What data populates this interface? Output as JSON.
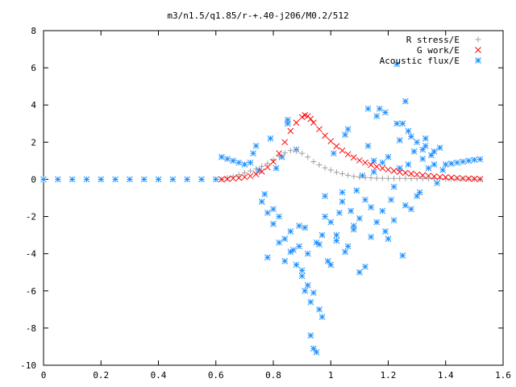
{
  "chart_data": {
    "type": "scatter",
    "title": "m3/n1.5/q1.85/r-+.40-j206/M0.2/512",
    "xlabel": "",
    "ylabel": "",
    "xlim": [
      0,
      1.6
    ],
    "ylim": [
      -10,
      8
    ],
    "x_ticks": [
      0,
      0.2,
      0.4,
      0.6,
      0.8,
      1.0,
      1.2,
      1.4,
      1.6
    ],
    "x_tick_labels": [
      "0",
      "0.2",
      "0.4",
      "0.6",
      "0.8",
      "1",
      "1.2",
      "1.4",
      "1.6"
    ],
    "y_ticks": [
      -10,
      -8,
      -6,
      -4,
      -2,
      0,
      2,
      4,
      6,
      8
    ],
    "y_tick_labels": [
      "-10",
      "-8",
      "-6",
      "-4",
      "-2",
      "0",
      "2",
      "4",
      "6",
      "8"
    ],
    "grid": false,
    "legend_position": "top-right",
    "series": [
      {
        "name": "R stress/E",
        "color": "#a0a0a0",
        "marker": "plus",
        "x": [
          0.62,
          0.64,
          0.66,
          0.68,
          0.7,
          0.72,
          0.74,
          0.76,
          0.78,
          0.8,
          0.82,
          0.84,
          0.86,
          0.88,
          0.9,
          0.92,
          0.94,
          0.96,
          0.98,
          1.0,
          1.02,
          1.04,
          1.06,
          1.08,
          1.1,
          1.12,
          1.14,
          1.16,
          1.18,
          1.2,
          1.22,
          1.24,
          1.26,
          1.28,
          1.3,
          1.32,
          1.34,
          1.36,
          1.38,
          1.4,
          1.42,
          1.44,
          1.46,
          1.48,
          1.5,
          1.52
        ],
        "y": [
          0.0,
          0.08,
          0.15,
          0.25,
          0.35,
          0.45,
          0.55,
          0.7,
          0.85,
          1.05,
          1.25,
          1.42,
          1.55,
          1.52,
          1.4,
          1.2,
          0.95,
          0.78,
          0.62,
          0.5,
          0.38,
          0.3,
          0.22,
          0.16,
          0.12,
          0.1,
          0.08,
          0.06,
          0.06,
          0.05,
          0.05,
          0.05,
          0.05,
          0.04,
          0.04,
          0.04,
          0.03,
          0.03,
          0.03,
          0.02,
          0.02,
          0.02,
          0.02,
          0.01,
          0.01,
          0.0
        ]
      },
      {
        "name": "G work/E",
        "color": "#ff0000",
        "marker": "cross",
        "x": [
          0.62,
          0.64,
          0.66,
          0.68,
          0.7,
          0.72,
          0.74,
          0.76,
          0.78,
          0.8,
          0.82,
          0.84,
          0.86,
          0.88,
          0.9,
          0.91,
          0.92,
          0.93,
          0.94,
          0.96,
          0.98,
          1.0,
          1.02,
          1.04,
          1.06,
          1.08,
          1.1,
          1.12,
          1.14,
          1.16,
          1.18,
          1.2,
          1.22,
          1.24,
          1.26,
          1.28,
          1.3,
          1.32,
          1.34,
          1.36,
          1.38,
          1.4,
          1.42,
          1.44,
          1.46,
          1.48,
          1.5,
          1.52
        ],
        "y": [
          0.0,
          0.02,
          0.05,
          0.08,
          0.12,
          0.18,
          0.28,
          0.42,
          0.65,
          0.95,
          1.4,
          2.0,
          2.6,
          3.05,
          3.35,
          3.45,
          3.4,
          3.25,
          3.05,
          2.7,
          2.35,
          2.05,
          1.78,
          1.55,
          1.35,
          1.18,
          1.02,
          0.9,
          0.78,
          0.68,
          0.6,
          0.52,
          0.46,
          0.4,
          0.35,
          0.3,
          0.26,
          0.22,
          0.19,
          0.16,
          0.13,
          0.11,
          0.09,
          0.07,
          0.05,
          0.04,
          0.03,
          0.02
        ]
      },
      {
        "name": "Acoustic flux/E",
        "color": "#1e90ff",
        "marker": "star",
        "x": [
          0.0,
          0.05,
          0.1,
          0.15,
          0.2,
          0.25,
          0.3,
          0.35,
          0.4,
          0.45,
          0.5,
          0.55,
          0.6,
          0.62,
          0.64,
          0.66,
          0.68,
          0.7,
          0.72,
          0.73,
          0.74,
          0.75,
          0.76,
          0.77,
          0.78,
          0.79,
          0.8,
          0.81,
          0.82,
          0.83,
          0.84,
          0.85,
          0.86,
          0.87,
          0.88,
          0.89,
          0.9,
          0.91,
          0.92,
          0.93,
          0.94,
          0.95,
          0.96,
          0.97,
          0.98,
          0.99,
          1.0,
          1.01,
          1.02,
          1.03,
          1.04,
          1.05,
          1.06,
          1.07,
          1.08,
          1.09,
          1.1,
          1.11,
          1.12,
          1.13,
          1.14,
          1.15,
          1.16,
          1.17,
          1.18,
          1.19,
          1.2,
          1.21,
          1.22,
          1.23,
          1.24,
          1.25,
          1.26,
          1.27,
          1.28,
          1.29,
          1.3,
          1.31,
          1.32,
          1.33,
          1.34,
          1.35,
          1.36,
          1.37,
          1.38,
          1.39,
          1.4,
          1.42,
          1.44,
          1.46,
          1.48,
          1.5,
          1.52,
          0.78,
          0.8,
          0.82,
          0.84,
          0.86,
          0.88,
          0.9,
          0.92,
          0.94,
          0.96,
          0.98,
          1.0,
          1.02,
          1.04,
          1.06,
          1.08,
          1.1,
          1.12,
          1.14,
          1.16,
          1.18,
          1.2,
          1.22,
          1.24,
          1.26,
          1.28,
          1.3,
          1.32,
          0.93,
          0.95,
          0.97,
          0.91,
          0.89,
          1.05,
          1.15,
          1.25,
          0.85,
          1.13,
          1.19,
          1.23,
          1.27,
          1.33,
          1.36
        ],
        "y": [
          0.0,
          0.0,
          0.0,
          0.0,
          0.0,
          0.0,
          0.0,
          0.0,
          0.0,
          0.0,
          0.0,
          0.0,
          0.0,
          1.2,
          1.1,
          1.0,
          0.9,
          0.8,
          0.9,
          1.4,
          1.8,
          0.5,
          -1.2,
          -0.8,
          -4.2,
          2.2,
          -1.6,
          0.6,
          -2.0,
          1.2,
          -4.4,
          3.2,
          -2.8,
          -3.8,
          1.6,
          -3.6,
          -5.2,
          -2.6,
          -4.0,
          -6.6,
          -9.1,
          -3.4,
          -7.0,
          -3.0,
          -0.9,
          -4.4,
          -2.3,
          1.4,
          -3.3,
          -1.8,
          -0.7,
          -3.9,
          2.7,
          -1.7,
          -2.5,
          -0.6,
          -5.0,
          0.2,
          -1.1,
          1.8,
          -1.5,
          0.4,
          3.4,
          3.8,
          0.9,
          -2.8,
          1.2,
          -1.1,
          -2.2,
          3.0,
          2.1,
          -4.1,
          4.2,
          0.8,
          -1.6,
          1.5,
          2.0,
          -0.7,
          1.1,
          1.8,
          0.6,
          1.3,
          0.8,
          -0.2,
          1.7,
          0.5,
          0.8,
          0.85,
          0.9,
          0.95,
          1.0,
          1.05,
          1.08,
          -1.8,
          -2.4,
          -3.4,
          -3.2,
          -3.9,
          -4.6,
          -4.9,
          -5.7,
          -6.1,
          -3.5,
          -2.0,
          -4.6,
          -3.0,
          -1.2,
          -3.6,
          -2.7,
          -2.1,
          -4.7,
          -3.1,
          -2.3,
          -1.7,
          -3.2,
          -0.4,
          0.6,
          -1.4,
          2.3,
          -0.9,
          1.6,
          -8.4,
          -9.3,
          -7.4,
          -6.0,
          -2.5,
          2.4,
          1.0,
          3.0,
          3.0,
          3.8,
          3.6,
          6.2,
          2.6,
          2.2,
          1.5
        ]
      }
    ]
  }
}
